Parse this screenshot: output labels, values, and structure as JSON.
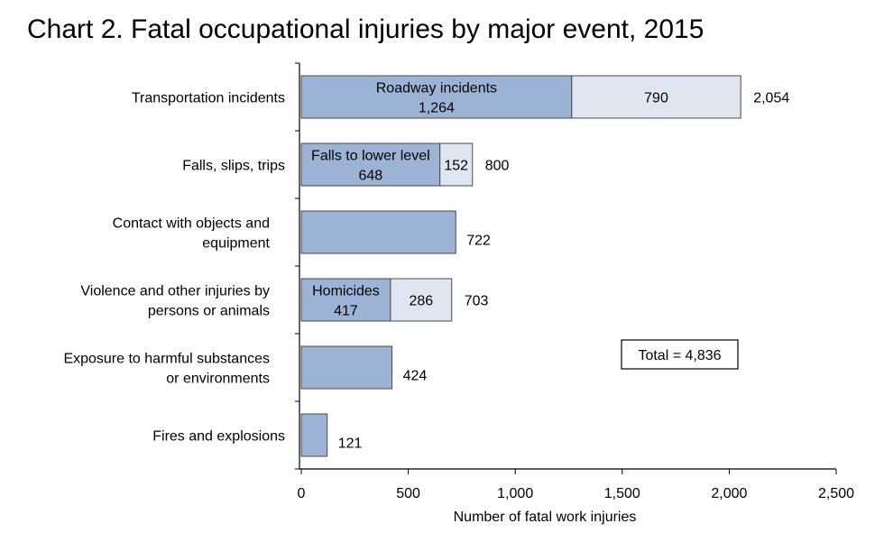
{
  "chart_data": {
    "type": "bar",
    "orientation": "horizontal",
    "stacked": true,
    "title": "Chart 2. Fatal occupational injuries by major event, 2015",
    "xlabel": "Number of fatal work injuries",
    "ylabel": "",
    "xlim": [
      0,
      2500
    ],
    "xticks": [
      0,
      500,
      1000,
      1500,
      2000,
      2500
    ],
    "xtick_labels": [
      "0",
      "500",
      "1,000",
      "1,500",
      "2,000",
      "2,500"
    ],
    "grid": false,
    "legend": "none",
    "colors": {
      "primary": "#9db3d6",
      "secondary": "#dfe6f1",
      "border": "#4a4a4a"
    },
    "categories": [
      {
        "label_lines": [
          "Transportation incidents"
        ],
        "total": 2054,
        "total_label": "2,054",
        "segments": [
          {
            "value": 1264,
            "label_lines": [
              "Roadway incidents",
              "1,264"
            ]
          },
          {
            "value": 790,
            "label_lines": [
              "790"
            ]
          }
        ]
      },
      {
        "label_lines": [
          "Falls, slips, trips"
        ],
        "total": 800,
        "total_label": "800",
        "segments": [
          {
            "value": 648,
            "label_lines": [
              "Falls to lower level",
              "648"
            ]
          },
          {
            "value": 152,
            "label_lines": [
              "152"
            ]
          }
        ]
      },
      {
        "label_lines": [
          "Contact with objects and",
          "equipment"
        ],
        "total": 722,
        "total_label": "722",
        "segments": [
          {
            "value": 722,
            "label_lines": []
          }
        ]
      },
      {
        "label_lines": [
          "Violence and other injuries by",
          "persons or animals"
        ],
        "total": 703,
        "total_label": "703",
        "segments": [
          {
            "value": 417,
            "label_lines": [
              "Homicides",
              "417"
            ]
          },
          {
            "value": 286,
            "label_lines": [
              "286"
            ]
          }
        ]
      },
      {
        "label_lines": [
          "Exposure to harmful substances",
          "or environments"
        ],
        "total": 424,
        "total_label": "424",
        "segments": [
          {
            "value": 424,
            "label_lines": []
          }
        ]
      },
      {
        "label_lines": [
          "Fires and explosions"
        ],
        "total": 121,
        "total_label": "121",
        "segments": [
          {
            "value": 121,
            "label_lines": []
          }
        ]
      }
    ],
    "annotation": "Total = 4,836"
  }
}
